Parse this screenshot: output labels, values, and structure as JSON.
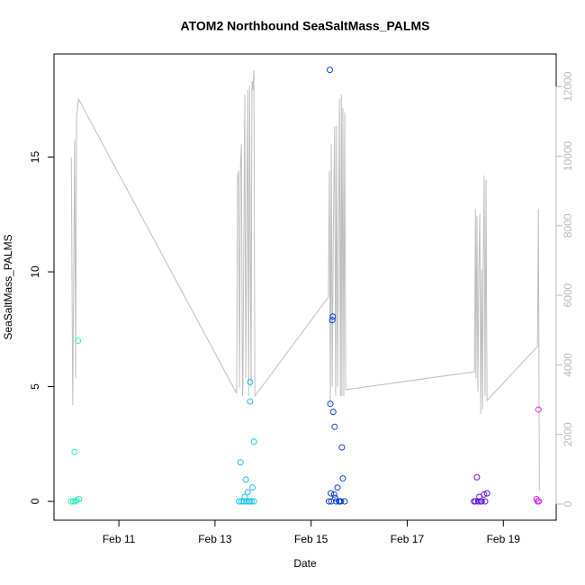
{
  "chart_data": {
    "type": "scatter",
    "title": "ATOM2 Northbound SeaSaltMass_PALMS",
    "x_label": "Date",
    "y_label": "SeaSaltMass_PALMS",
    "xlim": [
      9.65,
      20.1
    ],
    "xticks": [
      {
        "value": 11,
        "label": "Feb 11"
      },
      {
        "value": 13,
        "label": "Feb 13"
      },
      {
        "value": 15,
        "label": "Feb 15"
      },
      {
        "value": 17,
        "label": "Feb 17"
      },
      {
        "value": 19,
        "label": "Feb 19"
      }
    ],
    "ylim": [
      -0.82,
      19.49
    ],
    "yticks": [
      0,
      5,
      10,
      15
    ],
    "y2lim": [
      -466,
      12937
    ],
    "y2ticks": [
      0,
      2000,
      4000,
      6000,
      8000,
      10000,
      12000
    ],
    "series": [
      {
        "type": "line",
        "axis": "y2",
        "color": "#bebebe",
        "x": [
          10.01,
          10.04,
          10.08,
          10.1,
          10.12,
          10.16,
          13.45,
          13.47,
          13.49,
          13.51,
          13.53,
          13.55,
          13.57,
          13.58,
          13.62,
          13.64,
          13.68,
          13.7,
          13.72,
          13.75,
          13.77,
          13.79,
          13.81,
          13.83,
          15.36,
          15.38,
          15.4,
          15.42,
          15.44,
          15.46,
          15.49,
          15.51,
          15.53,
          15.55,
          15.59,
          15.61,
          15.63,
          15.64,
          15.66,
          15.68,
          15.7,
          15.72,
          18.4,
          18.42,
          18.43,
          18.45,
          18.47,
          18.49,
          18.51,
          18.53,
          18.55,
          18.57,
          18.58,
          18.6,
          18.62,
          18.64,
          18.66,
          19.71,
          19.73,
          19.75
        ],
        "values": [
          9960,
          2846,
          10477,
          3622,
          11124,
          11642,
          3182,
          9443,
          9572,
          3363,
          9701,
          10348,
          3104,
          3363,
          11771,
          3622,
          11900,
          3104,
          12030,
          3363,
          12159,
          11900,
          12469,
          3104,
          5950,
          9572,
          2846,
          10348,
          3363,
          7632,
          10865,
          3104,
          10865,
          3363,
          11642,
          3104,
          11771,
          3104,
          11383,
          3104,
          11253,
          3285,
          3803,
          8485,
          3622,
          8278,
          3234,
          6726,
          8330,
          2587,
          6726,
          2716,
          6726,
          9443,
          3104,
          9313,
          2975,
          4527,
          8485,
          388
        ]
      },
      {
        "color": "#22f0c0",
        "x": [
          10.0,
          10.05,
          10.08,
          10.1,
          10.12,
          10.15,
          10.17
        ],
        "values": [
          0,
          0,
          2.15,
          0,
          0.05,
          7.0,
          0.1
        ]
      },
      {
        "color": "#10c8f0",
        "x": [
          13.5,
          13.53,
          13.55,
          13.6,
          13.62,
          13.64,
          13.66,
          13.68,
          13.7,
          13.72,
          13.73,
          13.73,
          13.76,
          13.78,
          13.81,
          13.81
        ],
        "values": [
          0,
          1.7,
          0,
          0,
          0.2,
          0.95,
          0,
          0.4,
          0,
          0,
          5.2,
          4.35,
          0,
          0.6,
          2.6,
          0
        ]
      },
      {
        "color": "#1040f0",
        "x": [
          15.37,
          15.39,
          15.4,
          15.41,
          15.42,
          15.44,
          15.45,
          15.46,
          15.48,
          15.49,
          15.5,
          15.52,
          15.55,
          15.58,
          15.6,
          15.62,
          15.64,
          15.66,
          15.7
        ],
        "values": [
          0,
          18.8,
          4.25,
          0.35,
          0,
          7.9,
          8.05,
          3.9,
          0.3,
          3.25,
          0.15,
          0,
          0.6,
          0,
          0,
          0,
          2.35,
          1.0,
          0
        ]
      },
      {
        "color": "#6010e0",
        "x": [
          18.39,
          18.42,
          18.45,
          18.48,
          18.5,
          18.53,
          18.55,
          18.6,
          18.62,
          18.66
        ],
        "values": [
          0,
          0,
          1.05,
          0,
          0.2,
          0,
          0,
          0.3,
          0,
          0.35
        ]
      },
      {
        "color": "#e020e8",
        "x": [
          19.69,
          19.71,
          19.73,
          19.74
        ],
        "values": [
          0.1,
          0,
          4.0,
          0
        ]
      }
    ]
  }
}
